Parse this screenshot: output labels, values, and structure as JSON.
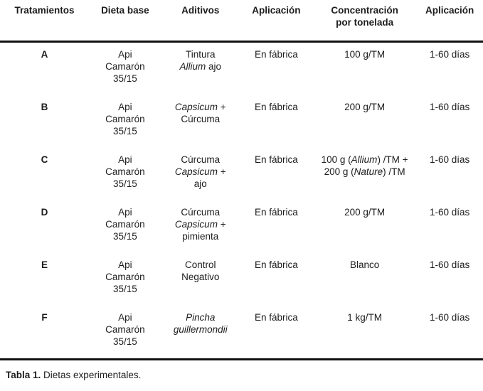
{
  "header": {
    "columns": [
      {
        "label": "Tratamientos",
        "lines": [
          "Tratamientos"
        ]
      },
      {
        "label": "Dieta base",
        "lines": [
          "Dieta base"
        ]
      },
      {
        "label": "Aditivos",
        "lines": [
          "Aditivos"
        ]
      },
      {
        "label": "Aplicación",
        "lines": [
          "Aplicación"
        ]
      },
      {
        "label": "Concentración por tonelada",
        "lines": [
          "Concentración",
          "por tonelada"
        ]
      },
      {
        "label": "Aplicación",
        "lines": [
          "Aplicación"
        ]
      }
    ]
  },
  "rows": [
    {
      "tratamiento": "A",
      "dieta_base": [
        "Api",
        "Camarón",
        "35/15"
      ],
      "aditivos": [
        [
          {
            "t": "Tintura"
          }
        ],
        [
          {
            "t": "Allium",
            "i": true
          },
          {
            "t": " ajo"
          }
        ]
      ],
      "aplicacion": "En fábrica",
      "concentracion": [
        [
          {
            "t": "100 g/TM"
          }
        ]
      ],
      "aplicacion_periodo": "1-60 días"
    },
    {
      "tratamiento": "B",
      "dieta_base": [
        "Api",
        "Camarón",
        "35/15"
      ],
      "aditivos": [
        [
          {
            "t": "Capsicum",
            "i": true
          },
          {
            "t": " +"
          }
        ],
        [
          {
            "t": "Cúrcuma"
          }
        ]
      ],
      "aplicacion": "En fábrica",
      "concentracion": [
        [
          {
            "t": "200 g/TM"
          }
        ]
      ],
      "aplicacion_periodo": "1-60 días"
    },
    {
      "tratamiento": "C",
      "dieta_base": [
        "Api",
        "Camarón",
        "35/15"
      ],
      "aditivos": [
        [
          {
            "t": "Cúrcuma"
          }
        ],
        [
          {
            "t": "Capsicum",
            "i": true
          },
          {
            "t": " +"
          }
        ],
        [
          {
            "t": "ajo"
          }
        ]
      ],
      "aplicacion": "En fábrica",
      "concentracion": [
        [
          {
            "t": "100 g ("
          },
          {
            "t": "Allium",
            "i": true
          },
          {
            "t": ") /TM +"
          }
        ],
        [
          {
            "t": "200 g ("
          },
          {
            "t": "Nature",
            "i": true
          },
          {
            "t": ") /TM"
          }
        ]
      ],
      "aplicacion_periodo": "1-60 días"
    },
    {
      "tratamiento": "D",
      "dieta_base": [
        "Api",
        "Camarón",
        "35/15"
      ],
      "aditivos": [
        [
          {
            "t": "Cúrcuma"
          }
        ],
        [
          {
            "t": "Capsicum",
            "i": true
          },
          {
            "t": " +"
          }
        ],
        [
          {
            "t": "pimienta"
          }
        ]
      ],
      "aplicacion": "En fábrica",
      "concentracion": [
        [
          {
            "t": "200 g/TM"
          }
        ]
      ],
      "aplicacion_periodo": "1-60 días"
    },
    {
      "tratamiento": "E",
      "dieta_base": [
        "Api",
        "Camarón",
        "35/15"
      ],
      "aditivos": [
        [
          {
            "t": "Control"
          }
        ],
        [
          {
            "t": "Negativo"
          }
        ]
      ],
      "aplicacion": "En fábrica",
      "concentracion": [
        [
          {
            "t": "Blanco"
          }
        ]
      ],
      "aplicacion_periodo": "1-60 días"
    },
    {
      "tratamiento": "F",
      "dieta_base": [
        "Api",
        "Camarón",
        "35/15"
      ],
      "aditivos": [
        [
          {
            "t": "Pincha",
            "i": true
          }
        ],
        [
          {
            "t": "guillermondii",
            "i": true
          }
        ]
      ],
      "aplicacion": "En fábrica",
      "concentracion": [
        [
          {
            "t": "1 kg/TM"
          }
        ]
      ],
      "aplicacion_periodo": "1-60 días"
    }
  ],
  "caption": {
    "label": "Tabla 1.",
    "text": " Dietas experimentales."
  }
}
